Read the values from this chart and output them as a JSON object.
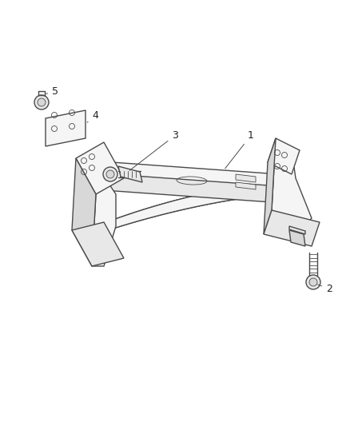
{
  "bg_color": "#ffffff",
  "line_color": "#4a4a4a",
  "fill_light": "#f5f5f5",
  "fill_mid": "#e8e8e8",
  "fill_dark": "#d8d8d8",
  "fig_width": 4.38,
  "fig_height": 5.33,
  "dpi": 100,
  "label_fs": 9,
  "label_color": "#222222",
  "lw": 1.0,
  "lw_thin": 0.6
}
